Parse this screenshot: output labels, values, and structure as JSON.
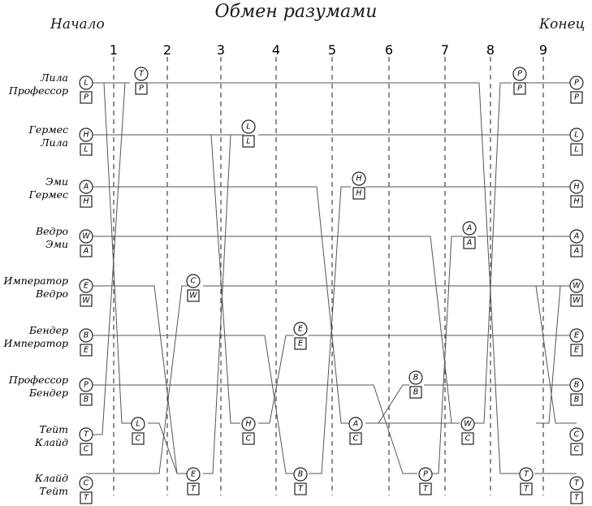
{
  "title": "Обмен разумами",
  "start_label": "Начало",
  "end_label": "Конец",
  "steps": [
    "1",
    "2",
    "3",
    "4",
    "5",
    "6",
    "7",
    "8",
    "9"
  ],
  "rows": [
    {
      "mind_name": "Лила",
      "body_name": "Профессор",
      "mind": "L",
      "body": "P",
      "end_mind": "P",
      "end_body": "P"
    },
    {
      "mind_name": "Гермес",
      "body_name": "Лила",
      "mind": "H",
      "body": "L",
      "end_mind": "L",
      "end_body": "L"
    },
    {
      "mind_name": "Эми",
      "body_name": "Гермес",
      "mind": "A",
      "body": "H",
      "end_mind": "H",
      "end_body": "H"
    },
    {
      "mind_name": "Ведро",
      "body_name": "Эми",
      "mind": "W",
      "body": "A",
      "end_mind": "A",
      "end_body": "A"
    },
    {
      "mind_name": "Император",
      "body_name": "Ведро",
      "mind": "E",
      "body": "W",
      "end_mind": "W",
      "end_body": "W"
    },
    {
      "mind_name": "Бендер",
      "body_name": "Император",
      "mind": "B",
      "body": "E",
      "end_mind": "E",
      "end_body": "E"
    },
    {
      "mind_name": "Профессор",
      "body_name": "Бендер",
      "mind": "P",
      "body": "B",
      "end_mind": "B",
      "end_body": "B"
    },
    {
      "mind_name": "Тейт",
      "body_name": "Клайд",
      "mind": "T",
      "body": "C",
      "end_mind": "C",
      "end_body": "C"
    },
    {
      "mind_name": "Клайд",
      "body_name": "Тейт",
      "mind": "C",
      "body": "T",
      "end_mind": "T",
      "end_body": "T"
    }
  ],
  "swap_badges": [
    {
      "mind": "T",
      "body": "P"
    },
    {
      "mind": "L",
      "body": "C"
    },
    {
      "mind": "C",
      "body": "W"
    },
    {
      "mind": "E",
      "body": "T"
    },
    {
      "mind": "L",
      "body": "L"
    },
    {
      "mind": "H",
      "body": "C"
    },
    {
      "mind": "E",
      "body": "E"
    },
    {
      "mind": "B",
      "body": "T"
    },
    {
      "mind": "H",
      "body": "H"
    },
    {
      "mind": "A",
      "body": "C"
    },
    {
      "mind": "B",
      "body": "B"
    },
    {
      "mind": "P",
      "body": "T"
    },
    {
      "mind": "A",
      "body": "A"
    },
    {
      "mind": "W",
      "body": "C"
    },
    {
      "mind": "P",
      "body": "P"
    },
    {
      "mind": "T",
      "body": "T"
    }
  ]
}
